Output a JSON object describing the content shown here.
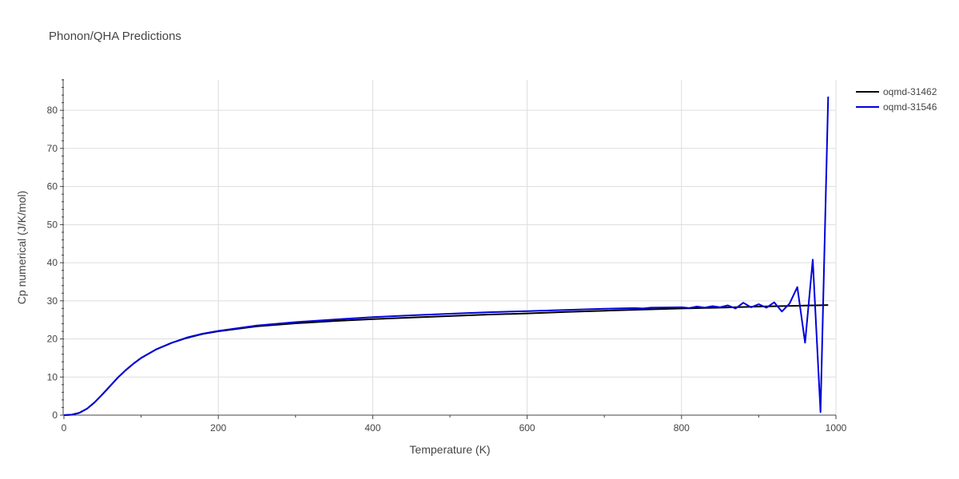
{
  "chart_data": {
    "type": "line",
    "title": "Phonon/QHA Predictions",
    "xlabel": "Temperature (K)",
    "ylabel": "Cp numerical (J/K/mol)",
    "xlim": [
      0,
      1000
    ],
    "ylim": [
      0,
      88
    ],
    "xticks": [
      0,
      200,
      400,
      600,
      800,
      1000
    ],
    "yticks": [
      0,
      10,
      20,
      30,
      40,
      50,
      60,
      70,
      80
    ],
    "grid": true,
    "legend_position": "top-right",
    "series": [
      {
        "name": "oqmd-31462",
        "color": "#000000",
        "x": [
          0,
          10,
          20,
          30,
          40,
          50,
          60,
          70,
          80,
          90,
          100,
          120,
          140,
          160,
          180,
          200,
          250,
          300,
          350,
          400,
          450,
          500,
          550,
          600,
          650,
          700,
          750,
          800,
          850,
          900,
          950,
          990
        ],
        "y": [
          0,
          0.1,
          0.6,
          1.7,
          3.4,
          5.5,
          7.7,
          9.9,
          11.8,
          13.5,
          15.0,
          17.3,
          19.0,
          20.3,
          21.3,
          22.0,
          23.3,
          24.1,
          24.7,
          25.2,
          25.6,
          26.0,
          26.4,
          26.7,
          27.1,
          27.4,
          27.7,
          28.0,
          28.2,
          28.5,
          28.7,
          28.9
        ]
      },
      {
        "name": "oqmd-31546",
        "color": "#0000dd",
        "x": [
          0,
          10,
          20,
          30,
          40,
          50,
          60,
          70,
          80,
          90,
          100,
          120,
          140,
          160,
          180,
          200,
          250,
          300,
          350,
          400,
          450,
          500,
          550,
          600,
          650,
          700,
          740,
          750,
          760,
          800,
          810,
          820,
          830,
          840,
          850,
          860,
          870,
          880,
          890,
          900,
          910,
          920,
          930,
          940,
          950,
          960,
          970,
          980,
          990
        ],
        "y": [
          0,
          0.1,
          0.6,
          1.7,
          3.4,
          5.5,
          7.7,
          9.9,
          11.8,
          13.5,
          15.0,
          17.3,
          19.0,
          20.4,
          21.4,
          22.1,
          23.5,
          24.4,
          25.1,
          25.7,
          26.2,
          26.6,
          27.0,
          27.3,
          27.6,
          27.9,
          28.1,
          28.0,
          28.2,
          28.3,
          28.1,
          28.5,
          28.2,
          28.6,
          28.3,
          28.8,
          28.0,
          29.5,
          28.3,
          29.1,
          28.2,
          29.6,
          27.2,
          29.3,
          33.6,
          19.0,
          40.8,
          0.8,
          83.6
        ]
      }
    ]
  }
}
